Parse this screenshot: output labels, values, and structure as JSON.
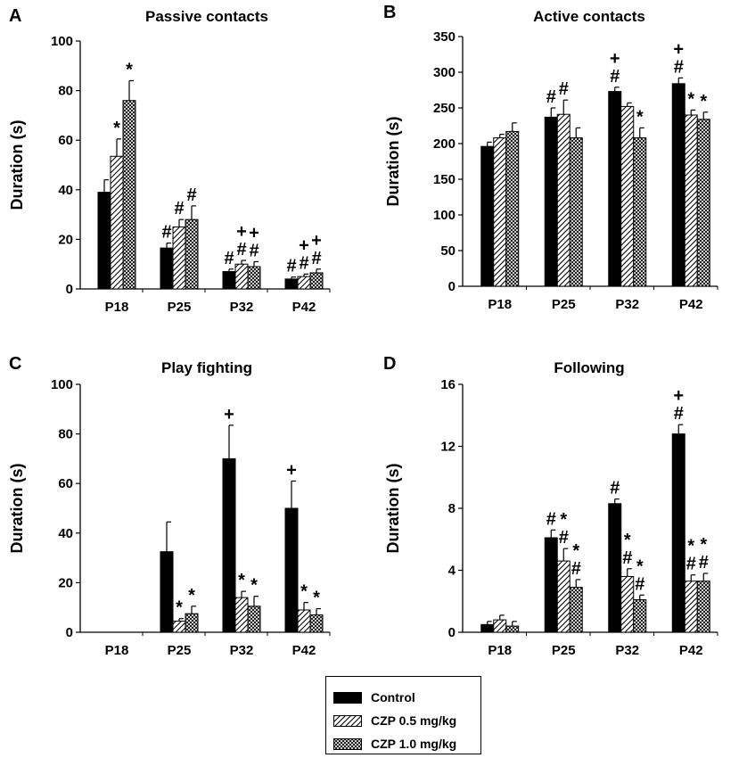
{
  "legend": {
    "items": [
      {
        "label": "Control",
        "pattern": "solid"
      },
      {
        "label": "CZP 0.5 mg/kg",
        "pattern": "hatch"
      },
      {
        "label": "CZP 1.0 mg/kg",
        "pattern": "cross"
      }
    ]
  },
  "colors": {
    "bar_fill": "#000000",
    "background": "#ffffff"
  },
  "chart_data": [
    {
      "panel_label": "A",
      "type": "bar",
      "title": "Passive contacts",
      "ylabel": "Duration (s)",
      "ylim": [
        0,
        100
      ],
      "yticks": [
        "0",
        "20",
        "40",
        "60",
        "80",
        "100"
      ],
      "categories": [
        "P18",
        "P25",
        "P32",
        "P42"
      ],
      "series": [
        {
          "name": "Control",
          "values": [
            39,
            16.5,
            7,
            4
          ],
          "errors": [
            5,
            2,
            1,
            0.8
          ]
        },
        {
          "name": "CZP 0.5 mg/kg",
          "values": [
            53.5,
            25,
            10,
            5
          ],
          "errors": [
            7,
            3,
            1.5,
            1
          ]
        },
        {
          "name": "CZP 1.0 mg/kg",
          "values": [
            76,
            28,
            9,
            6.5
          ],
          "errors": [
            8,
            5.5,
            2,
            1.5
          ]
        }
      ],
      "annotations": [
        {
          "category": "P18",
          "series": 1,
          "text": "*"
        },
        {
          "category": "P18",
          "series": 2,
          "text": "*"
        },
        {
          "category": "P25",
          "series": 0,
          "text": "#"
        },
        {
          "category": "P25",
          "series": 1,
          "text": "#"
        },
        {
          "category": "P25",
          "series": 2,
          "text": "#"
        },
        {
          "category": "P32",
          "series": 0,
          "text": "#"
        },
        {
          "category": "P32",
          "series": 1,
          "text": "#"
        },
        {
          "category": "P32",
          "series": 2,
          "text": "#"
        },
        {
          "category": "P32",
          "series": 1,
          "text": "+"
        },
        {
          "category": "P32",
          "series": 2,
          "text": "+"
        },
        {
          "category": "P42",
          "series": 0,
          "text": "#"
        },
        {
          "category": "P42",
          "series": 1,
          "text": "#"
        },
        {
          "category": "P42",
          "series": 2,
          "text": "#"
        },
        {
          "category": "P42",
          "series": 1,
          "text": "+"
        },
        {
          "category": "P42",
          "series": 2,
          "text": "+"
        }
      ]
    },
    {
      "panel_label": "B",
      "type": "bar",
      "title": "Active contacts",
      "ylabel": "Duration (s)",
      "ylim": [
        0,
        350
      ],
      "yticks": [
        "0",
        "50",
        "100",
        "150",
        "200",
        "250",
        "300",
        "350"
      ],
      "categories": [
        "P18",
        "P25",
        "P32",
        "P42"
      ],
      "series": [
        {
          "name": "Control",
          "values": [
            196,
            237,
            273,
            284
          ],
          "errors": [
            6,
            13,
            6,
            8
          ]
        },
        {
          "name": "CZP 0.5 mg/kg",
          "values": [
            208,
            241,
            252,
            240
          ],
          "errors": [
            5,
            20,
            5,
            7
          ]
        },
        {
          "name": "CZP 1.0 mg/kg",
          "values": [
            217,
            208,
            208,
            234
          ],
          "errors": [
            12,
            14,
            14,
            10
          ]
        }
      ],
      "annotations": [
        {
          "category": "P25",
          "series": 0,
          "text": "#"
        },
        {
          "category": "P25",
          "series": 1,
          "text": "#"
        },
        {
          "category": "P32",
          "series": 0,
          "text": "#"
        },
        {
          "category": "P32",
          "series": 0,
          "text": "+"
        },
        {
          "category": "P32",
          "series": 2,
          "text": "*"
        },
        {
          "category": "P42",
          "series": 0,
          "text": "#"
        },
        {
          "category": "P42",
          "series": 0,
          "text": "+"
        },
        {
          "category": "P42",
          "series": 1,
          "text": "*"
        },
        {
          "category": "P42",
          "series": 2,
          "text": "*"
        }
      ]
    },
    {
      "panel_label": "C",
      "type": "bar",
      "title": "Play fighting",
      "ylabel": "Duration (s)",
      "ylim": [
        0,
        100
      ],
      "yticks": [
        "0",
        "20",
        "40",
        "60",
        "80",
        "100"
      ],
      "categories": [
        "P18",
        "P25",
        "P32",
        "P42"
      ],
      "series": [
        {
          "name": "Control",
          "values": [
            0,
            32.5,
            70,
            50
          ],
          "errors": [
            0,
            12,
            13.5,
            11
          ]
        },
        {
          "name": "CZP 0.5 mg/kg",
          "values": [
            0,
            4.5,
            14,
            9
          ],
          "errors": [
            0,
            1,
            2.5,
            3
          ]
        },
        {
          "name": "CZP 1.0 mg/kg",
          "values": [
            0,
            7.5,
            10.5,
            7
          ],
          "errors": [
            0,
            3,
            4,
            2.5
          ]
        }
      ],
      "annotations": [
        {
          "category": "P25",
          "series": 1,
          "text": "*"
        },
        {
          "category": "P25",
          "series": 2,
          "text": "*"
        },
        {
          "category": "P32",
          "series": 0,
          "text": "+"
        },
        {
          "category": "P32",
          "series": 1,
          "text": "*"
        },
        {
          "category": "P32",
          "series": 2,
          "text": "*"
        },
        {
          "category": "P42",
          "series": 0,
          "text": "+"
        },
        {
          "category": "P42",
          "series": 1,
          "text": "*"
        },
        {
          "category": "P42",
          "series": 2,
          "text": "*"
        }
      ]
    },
    {
      "panel_label": "D",
      "type": "bar",
      "title": "Following",
      "ylabel": "Duration (s)",
      "ylim": [
        0,
        16
      ],
      "yticks": [
        "0",
        "4",
        "8",
        "12",
        "16"
      ],
      "categories": [
        "P18",
        "P25",
        "P32",
        "P42"
      ],
      "series": [
        {
          "name": "Control",
          "values": [
            0.5,
            6.1,
            8.3,
            12.8
          ],
          "errors": [
            0.2,
            0.5,
            0.3,
            0.6
          ]
        },
        {
          "name": "CZP 0.5 mg/kg",
          "values": [
            0.8,
            4.6,
            3.6,
            3.3
          ],
          "errors": [
            0.3,
            0.8,
            0.5,
            0.4
          ]
        },
        {
          "name": "CZP 1.0 mg/kg",
          "values": [
            0.4,
            2.9,
            2.1,
            3.3
          ],
          "errors": [
            0.3,
            0.5,
            0.3,
            0.5
          ]
        }
      ],
      "annotations": [
        {
          "category": "P25",
          "series": 0,
          "text": "#"
        },
        {
          "category": "P25",
          "series": 1,
          "text": "#"
        },
        {
          "category": "P25",
          "series": 1,
          "text": "*"
        },
        {
          "category": "P25",
          "series": 2,
          "text": "#"
        },
        {
          "category": "P25",
          "series": 2,
          "text": "*"
        },
        {
          "category": "P32",
          "series": 0,
          "text": "#"
        },
        {
          "category": "P32",
          "series": 1,
          "text": "#"
        },
        {
          "category": "P32",
          "series": 1,
          "text": "*"
        },
        {
          "category": "P32",
          "series": 2,
          "text": "#"
        },
        {
          "category": "P32",
          "series": 2,
          "text": "*"
        },
        {
          "category": "P42",
          "series": 0,
          "text": "#"
        },
        {
          "category": "P42",
          "series": 0,
          "text": "+"
        },
        {
          "category": "P42",
          "series": 1,
          "text": "#"
        },
        {
          "category": "P42",
          "series": 1,
          "text": "*"
        },
        {
          "category": "P42",
          "series": 2,
          "text": "#"
        },
        {
          "category": "P42",
          "series": 2,
          "text": "*"
        }
      ]
    }
  ]
}
